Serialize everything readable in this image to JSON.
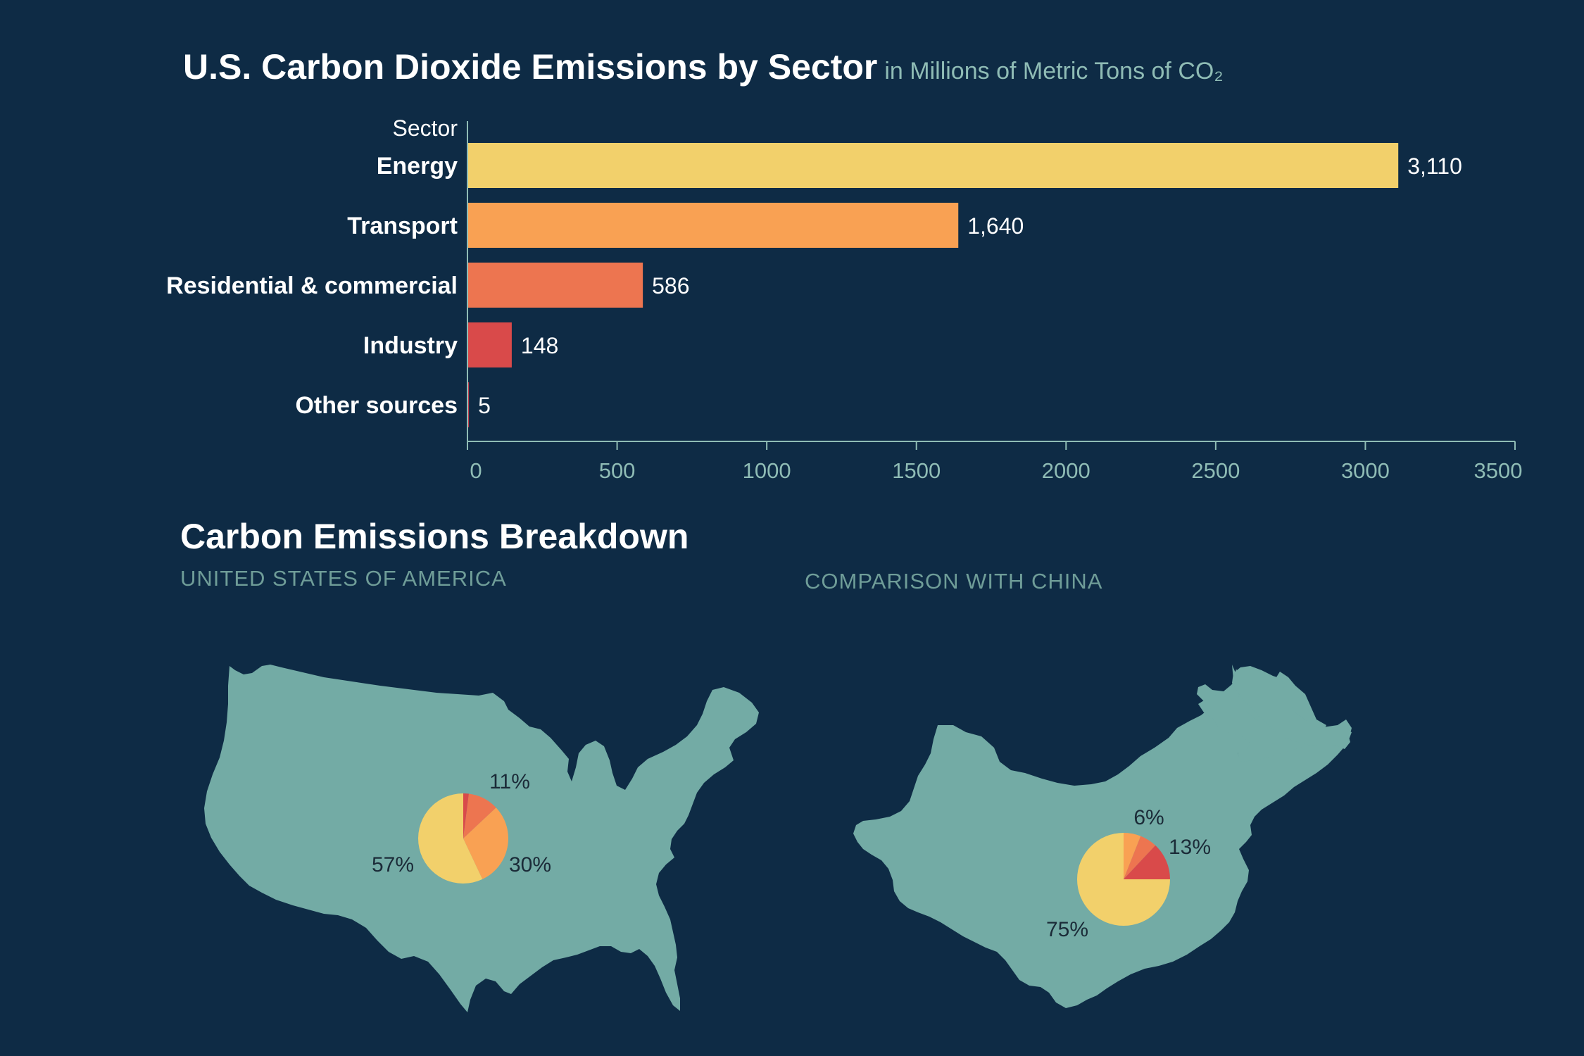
{
  "header": {
    "title": "U.S. Carbon Dioxide Emissions by Sector",
    "subtitle": "in Millions of Metric Tons of CO₂"
  },
  "colors": {
    "background": "#0e2b45",
    "energy": "#f2d06b",
    "transport": "#f9a153",
    "residential": "#ed7550",
    "industry": "#d94a4a",
    "other": "#c0394a",
    "axis": "#8fbcb5",
    "map": "#73aba5"
  },
  "chart_data": [
    {
      "type": "bar",
      "orientation": "horizontal",
      "ylabel": "Sector",
      "categories": [
        "Energy",
        "Transport",
        "Residential & commercial",
        "Industry",
        "Other sources"
      ],
      "values": [
        3110,
        1640,
        586,
        148,
        5
      ],
      "value_labels": [
        "3,110",
        "1,640",
        "586",
        "148",
        "5"
      ],
      "xlim": [
        0,
        3500
      ],
      "xticks": [
        0,
        500,
        1000,
        1500,
        2000,
        2500,
        3000,
        3500
      ],
      "grid": false
    },
    {
      "type": "pie",
      "region": "UNITED STATES OF AMERICA",
      "slices": [
        {
          "category": "Energy",
          "value": 57,
          "label": "57%"
        },
        {
          "category": "Transport",
          "value": 30,
          "label": "30%"
        },
        {
          "category": "Residential & commercial",
          "value": 11,
          "label": "11%"
        },
        {
          "category": "Industry",
          "value": 2,
          "label": ""
        }
      ]
    },
    {
      "type": "pie",
      "region": "COMPARISON WITH CHINA",
      "slices": [
        {
          "category": "Energy",
          "value": 75,
          "label": "75%"
        },
        {
          "category": "Transport",
          "value": 6,
          "label": "6%"
        },
        {
          "category": "Residential & commercial",
          "value": 6,
          "label": ""
        },
        {
          "category": "Industry",
          "value": 13,
          "label": "13%"
        }
      ]
    }
  ],
  "breakdown": {
    "title": "Carbon Emissions Breakdown",
    "us_label": "UNITED STATES OF AMERICA",
    "china_label": "COMPARISON WITH CHINA"
  }
}
